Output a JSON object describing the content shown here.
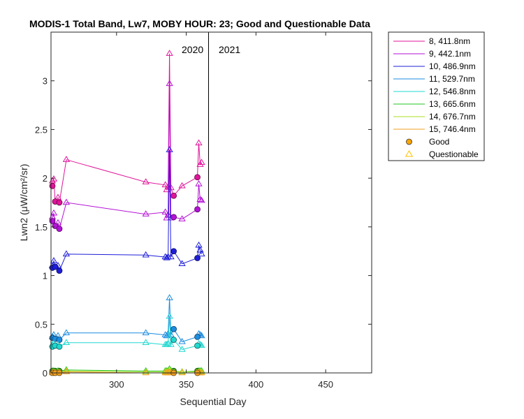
{
  "chart_data": {
    "type": "line",
    "title": "MODIS-1 Total Band, Lw7, MOBY HOUR: 23;  Good and Questionable Data",
    "xlabel": "Sequential Day",
    "ylabel": "Lwn2 (μW/cm²/sr)",
    "xlim": [
      253,
      483
    ],
    "ylim": [
      0,
      3.5
    ],
    "xticks": [
      300,
      350,
      400,
      450
    ],
    "yticks": [
      0,
      0.5,
      1,
      1.5,
      2,
      2.5,
      3
    ],
    "ytick_labels": [
      "0",
      "0.5",
      "1",
      "1.5",
      "2",
      "2.5",
      "3"
    ],
    "year_divider_x": 366,
    "year_labels": [
      "2020",
      "2021"
    ],
    "legend_position": "outside-top-right",
    "marker_legend": [
      {
        "label": "Good",
        "marker": "circle",
        "color": "#FFA500"
      },
      {
        "label": "Questionable",
        "marker": "triangle",
        "color": "#FFC000"
      }
    ],
    "series": [
      {
        "name": "8, 411.8nm",
        "color": "#E0149A",
        "good": [
          [
            254,
            1.92
          ],
          [
            256,
            1.76
          ],
          [
            259,
            1.75
          ],
          [
            341,
            1.82
          ],
          [
            358,
            2.01
          ]
        ],
        "questionable": [
          [
            254,
            1.97
          ],
          [
            255,
            1.99
          ],
          [
            258,
            1.8
          ],
          [
            264,
            2.19
          ],
          [
            321,
            1.96
          ],
          [
            335,
            1.93
          ],
          [
            336,
            1.88
          ],
          [
            337,
            1.91
          ],
          [
            338,
            3.28
          ],
          [
            339,
            1.9
          ],
          [
            347,
            1.92
          ],
          [
            359,
            2.36
          ],
          [
            360,
            2.14
          ],
          [
            361,
            2.16
          ]
        ],
        "line": [
          [
            254,
            1.92
          ],
          [
            254,
            1.97
          ],
          [
            255,
            1.99
          ],
          [
            256,
            1.76
          ],
          [
            258,
            1.8
          ],
          [
            259,
            1.75
          ],
          [
            264,
            2.19
          ],
          [
            321,
            1.96
          ],
          [
            335,
            1.93
          ],
          [
            336,
            1.88
          ],
          [
            337,
            1.91
          ],
          [
            338,
            3.28
          ],
          [
            339,
            1.9
          ],
          [
            341,
            1.82
          ],
          [
            347,
            1.92
          ],
          [
            358,
            2.01
          ],
          [
            359,
            2.36
          ],
          [
            360,
            2.14
          ],
          [
            361,
            2.16
          ]
        ]
      },
      {
        "name": "9, 442.1nm",
        "color": "#B412D6",
        "good": [
          [
            254,
            1.56
          ],
          [
            256,
            1.51
          ],
          [
            259,
            1.48
          ],
          [
            341,
            1.6
          ],
          [
            358,
            1.68
          ]
        ],
        "questionable": [
          [
            254,
            1.6
          ],
          [
            255,
            1.64
          ],
          [
            258,
            1.54
          ],
          [
            264,
            1.75
          ],
          [
            321,
            1.63
          ],
          [
            335,
            1.65
          ],
          [
            336,
            1.59
          ],
          [
            337,
            1.62
          ],
          [
            338,
            2.97
          ],
          [
            339,
            1.59
          ],
          [
            347,
            1.58
          ],
          [
            359,
            1.94
          ],
          [
            360,
            1.78
          ],
          [
            361,
            1.77
          ]
        ],
        "line": [
          [
            254,
            1.56
          ],
          [
            254,
            1.6
          ],
          [
            255,
            1.64
          ],
          [
            256,
            1.51
          ],
          [
            258,
            1.54
          ],
          [
            259,
            1.48
          ],
          [
            264,
            1.75
          ],
          [
            321,
            1.63
          ],
          [
            335,
            1.65
          ],
          [
            336,
            1.59
          ],
          [
            337,
            1.62
          ],
          [
            338,
            2.97
          ],
          [
            339,
            1.59
          ],
          [
            341,
            1.6
          ],
          [
            347,
            1.58
          ],
          [
            358,
            1.68
          ],
          [
            359,
            1.94
          ],
          [
            360,
            1.78
          ],
          [
            361,
            1.77
          ]
        ]
      },
      {
        "name": "10, 486.9nm",
        "color": "#1E1ED8",
        "good": [
          [
            254,
            1.08
          ],
          [
            256,
            1.09
          ],
          [
            259,
            1.05
          ],
          [
            341,
            1.25
          ],
          [
            358,
            1.18
          ]
        ],
        "questionable": [
          [
            254,
            1.1
          ],
          [
            255,
            1.15
          ],
          [
            258,
            1.1
          ],
          [
            264,
            1.22
          ],
          [
            321,
            1.21
          ],
          [
            335,
            1.19
          ],
          [
            336,
            1.18
          ],
          [
            337,
            1.19
          ],
          [
            338,
            2.29
          ],
          [
            339,
            1.19
          ],
          [
            347,
            1.12
          ],
          [
            359,
            1.31
          ],
          [
            360,
            1.26
          ],
          [
            361,
            1.22
          ]
        ],
        "line": [
          [
            254,
            1.08
          ],
          [
            254,
            1.1
          ],
          [
            255,
            1.15
          ],
          [
            256,
            1.09
          ],
          [
            258,
            1.1
          ],
          [
            259,
            1.05
          ],
          [
            264,
            1.22
          ],
          [
            321,
            1.21
          ],
          [
            335,
            1.19
          ],
          [
            336,
            1.18
          ],
          [
            337,
            1.19
          ],
          [
            338,
            2.29
          ],
          [
            339,
            1.19
          ],
          [
            341,
            1.25
          ],
          [
            347,
            1.12
          ],
          [
            358,
            1.18
          ],
          [
            359,
            1.31
          ],
          [
            360,
            1.26
          ],
          [
            361,
            1.22
          ]
        ]
      },
      {
        "name": "11, 529.7nm",
        "color": "#1C8CE0",
        "good": [
          [
            254,
            0.36
          ],
          [
            256,
            0.35
          ],
          [
            259,
            0.34
          ],
          [
            341,
            0.45
          ],
          [
            358,
            0.37
          ]
        ],
        "questionable": [
          [
            254,
            0.37
          ],
          [
            255,
            0.39
          ],
          [
            258,
            0.38
          ],
          [
            264,
            0.41
          ],
          [
            321,
            0.41
          ],
          [
            335,
            0.39
          ],
          [
            336,
            0.38
          ],
          [
            337,
            0.4
          ],
          [
            338,
            0.77
          ],
          [
            339,
            0.39
          ],
          [
            347,
            0.32
          ],
          [
            359,
            0.4
          ],
          [
            360,
            0.39
          ],
          [
            361,
            0.38
          ]
        ],
        "line": [
          [
            254,
            0.36
          ],
          [
            254,
            0.37
          ],
          [
            255,
            0.39
          ],
          [
            256,
            0.35
          ],
          [
            258,
            0.38
          ],
          [
            259,
            0.34
          ],
          [
            264,
            0.41
          ],
          [
            321,
            0.41
          ],
          [
            335,
            0.39
          ],
          [
            336,
            0.38
          ],
          [
            337,
            0.4
          ],
          [
            338,
            0.77
          ],
          [
            339,
            0.39
          ],
          [
            341,
            0.45
          ],
          [
            347,
            0.32
          ],
          [
            358,
            0.37
          ],
          [
            359,
            0.4
          ],
          [
            360,
            0.39
          ],
          [
            361,
            0.38
          ]
        ]
      },
      {
        "name": "12, 546.8nm",
        "color": "#20D8D0",
        "good": [
          [
            254,
            0.27
          ],
          [
            256,
            0.28
          ],
          [
            259,
            0.27
          ],
          [
            341,
            0.34
          ],
          [
            358,
            0.28
          ]
        ],
        "questionable": [
          [
            254,
            0.29
          ],
          [
            255,
            0.3
          ],
          [
            258,
            0.29
          ],
          [
            264,
            0.31
          ],
          [
            321,
            0.31
          ],
          [
            335,
            0.29
          ],
          [
            336,
            0.29
          ],
          [
            337,
            0.3
          ],
          [
            338,
            0.58
          ],
          [
            339,
            0.29
          ],
          [
            347,
            0.24
          ],
          [
            359,
            0.3
          ],
          [
            360,
            0.29
          ],
          [
            361,
            0.28
          ]
        ],
        "line": [
          [
            254,
            0.27
          ],
          [
            254,
            0.29
          ],
          [
            255,
            0.3
          ],
          [
            256,
            0.28
          ],
          [
            258,
            0.29
          ],
          [
            259,
            0.27
          ],
          [
            264,
            0.31
          ],
          [
            321,
            0.31
          ],
          [
            335,
            0.29
          ],
          [
            336,
            0.29
          ],
          [
            337,
            0.3
          ],
          [
            338,
            0.58
          ],
          [
            339,
            0.29
          ],
          [
            341,
            0.34
          ],
          [
            347,
            0.24
          ],
          [
            358,
            0.28
          ],
          [
            359,
            0.3
          ],
          [
            360,
            0.29
          ],
          [
            361,
            0.28
          ]
        ]
      },
      {
        "name": "13, 665.6nm",
        "color": "#22C422",
        "good": [
          [
            254,
            0.02
          ],
          [
            256,
            0.02
          ],
          [
            259,
            0.02
          ],
          [
            341,
            0.02
          ],
          [
            358,
            0.02
          ]
        ],
        "questionable": [
          [
            254,
            0.02
          ],
          [
            255,
            0.02
          ],
          [
            258,
            0.02
          ],
          [
            264,
            0.03
          ],
          [
            321,
            0.02
          ],
          [
            335,
            0.02
          ],
          [
            336,
            0.02
          ],
          [
            337,
            0.02
          ],
          [
            338,
            0.04
          ],
          [
            339,
            0.02
          ],
          [
            347,
            0.01
          ],
          [
            359,
            0.02
          ],
          [
            360,
            0.02
          ],
          [
            361,
            0.02
          ]
        ],
        "line": [
          [
            254,
            0.02
          ],
          [
            255,
            0.02
          ],
          [
            256,
            0.02
          ],
          [
            258,
            0.02
          ],
          [
            259,
            0.02
          ],
          [
            264,
            0.03
          ],
          [
            321,
            0.02
          ],
          [
            335,
            0.02
          ],
          [
            336,
            0.02
          ],
          [
            337,
            0.02
          ],
          [
            338,
            0.04
          ],
          [
            339,
            0.02
          ],
          [
            341,
            0.02
          ],
          [
            347,
            0.01
          ],
          [
            358,
            0.02
          ],
          [
            359,
            0.02
          ],
          [
            360,
            0.02
          ],
          [
            361,
            0.02
          ]
        ]
      },
      {
        "name": "14, 676.7nm",
        "color": "#A8E020",
        "good": [
          [
            254,
            0.01
          ],
          [
            256,
            0.01
          ],
          [
            259,
            0.01
          ],
          [
            341,
            0.01
          ],
          [
            358,
            0.01
          ]
        ],
        "questionable": [
          [
            254,
            0.01
          ],
          [
            255,
            0.01
          ],
          [
            258,
            0.01
          ],
          [
            264,
            0.02
          ],
          [
            321,
            0.01
          ],
          [
            335,
            0.01
          ],
          [
            336,
            0.01
          ],
          [
            337,
            0.01
          ],
          [
            338,
            0.03
          ],
          [
            339,
            0.01
          ],
          [
            347,
            0.01
          ],
          [
            359,
            0.01
          ],
          [
            360,
            0.01
          ],
          [
            361,
            0.01
          ]
        ],
        "line": [
          [
            254,
            0.01
          ],
          [
            255,
            0.01
          ],
          [
            256,
            0.01
          ],
          [
            258,
            0.01
          ],
          [
            259,
            0.01
          ],
          [
            264,
            0.02
          ],
          [
            321,
            0.01
          ],
          [
            335,
            0.01
          ],
          [
            336,
            0.01
          ],
          [
            337,
            0.01
          ],
          [
            338,
            0.03
          ],
          [
            339,
            0.01
          ],
          [
            341,
            0.01
          ],
          [
            347,
            0.01
          ],
          [
            358,
            0.01
          ],
          [
            359,
            0.01
          ],
          [
            360,
            0.01
          ],
          [
            361,
            0.01
          ]
        ]
      },
      {
        "name": "15, 746.4nm",
        "color": "#F0A020",
        "good": [
          [
            254,
            0.0
          ],
          [
            256,
            0.0
          ],
          [
            259,
            0.0
          ],
          [
            341,
            0.0
          ],
          [
            358,
            0.0
          ]
        ],
        "questionable": [
          [
            254,
            0.0
          ],
          [
            255,
            0.0
          ],
          [
            258,
            0.0
          ],
          [
            264,
            0.01
          ],
          [
            321,
            0.0
          ],
          [
            335,
            0.0
          ],
          [
            336,
            0.0
          ],
          [
            337,
            0.0
          ],
          [
            338,
            0.01
          ],
          [
            339,
            0.0
          ],
          [
            347,
            0.0
          ],
          [
            359,
            0.0
          ],
          [
            360,
            0.0
          ],
          [
            361,
            0.0
          ]
        ],
        "line": [
          [
            254,
            0.0
          ],
          [
            255,
            0.0
          ],
          [
            256,
            0.0
          ],
          [
            258,
            0.0
          ],
          [
            259,
            0.0
          ],
          [
            264,
            0.01
          ],
          [
            321,
            0.0
          ],
          [
            335,
            0.0
          ],
          [
            336,
            0.0
          ],
          [
            337,
            0.0
          ],
          [
            338,
            0.01
          ],
          [
            339,
            0.0
          ],
          [
            341,
            0.0
          ],
          [
            347,
            0.0
          ],
          [
            358,
            0.0
          ],
          [
            359,
            0.0
          ],
          [
            360,
            0.0
          ],
          [
            361,
            0.0
          ]
        ]
      }
    ]
  }
}
